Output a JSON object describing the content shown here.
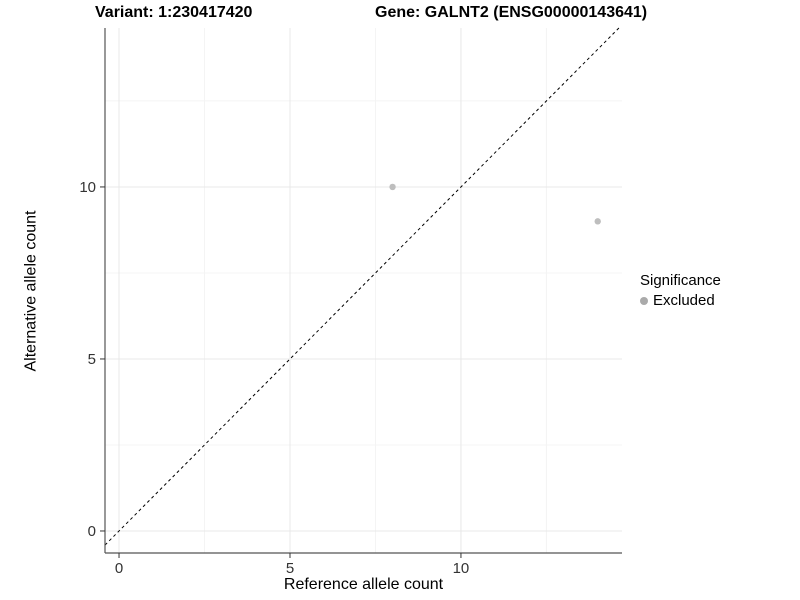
{
  "chart_data": {
    "type": "scatter",
    "title_left": "Variant: 1:230417420",
    "title_right": "Gene: GALNT2 (ENSG00000143641)",
    "xlabel": "Reference allele count",
    "ylabel": "Alternative allele count",
    "xlim": [
      -0.41,
      14.71
    ],
    "ylim": [
      -0.64,
      14.62
    ],
    "x_ticks": [
      0,
      5,
      10
    ],
    "y_ticks": [
      0,
      5,
      10
    ],
    "x_minor": [
      2.5,
      7.5,
      12.5
    ],
    "y_minor": [
      2.5,
      7.5,
      12.5
    ],
    "grid": true,
    "identity_line": {
      "type": "dashed",
      "slope": 1,
      "intercept": 0,
      "color": "#000000"
    },
    "series": [
      {
        "name": "Excluded",
        "color": "#bebebe",
        "points": [
          {
            "x": 8,
            "y": 10
          },
          {
            "x": 14,
            "y": 9
          }
        ]
      }
    ],
    "legend": {
      "title": "Significance",
      "position": "right",
      "items": [
        {
          "label": "Excluded",
          "color": "#aaaaaa"
        }
      ]
    },
    "colors": {
      "grid_major": "#e8e8e8",
      "grid_minor": "#f4f4f4",
      "axis_line": "#555555",
      "tick_mark": "#333333",
      "tick_label": "#333333",
      "point": "#bebebe"
    }
  }
}
